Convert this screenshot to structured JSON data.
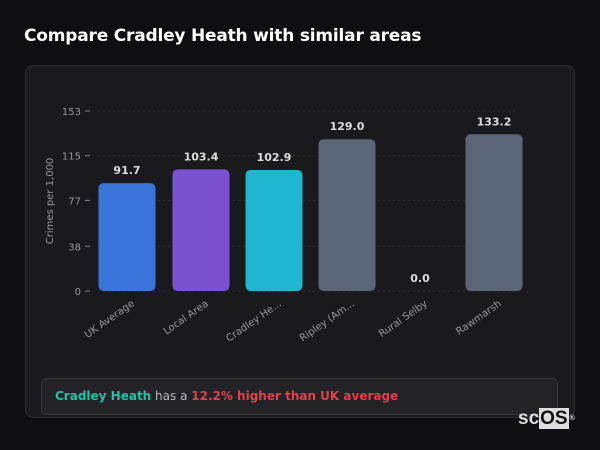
{
  "title": "Compare Cradley Heath with similar areas",
  "chart_data": {
    "type": "bar",
    "categories": [
      "UK Average",
      "Local Area",
      "Cradley He...",
      "Ripley (Am...",
      "Rural Selby",
      "Rawmarsh"
    ],
    "values": [
      91.7,
      103.4,
      102.9,
      129.0,
      0.0,
      133.2
    ],
    "data_labels": [
      "91.7",
      "103.4",
      "102.9",
      "129.0",
      "0.0",
      "133.2"
    ],
    "colors": [
      "#3a74d9",
      "#7a52d1",
      "#21b6cf",
      "#5a6577",
      "#5a6577",
      "#5a6577"
    ],
    "ylabel": "Crimes per 1,000",
    "xlabel": "",
    "ylim": [
      0,
      153
    ],
    "yticks": [
      0,
      38,
      77,
      115,
      153
    ],
    "grid": true
  },
  "summary": {
    "area": "Cradley Heath",
    "middle": " has a ",
    "comparison": "12.2% higher than UK average"
  },
  "logo": {
    "text_sc": "sc",
    "text_os": "OS",
    "mark": "®"
  }
}
